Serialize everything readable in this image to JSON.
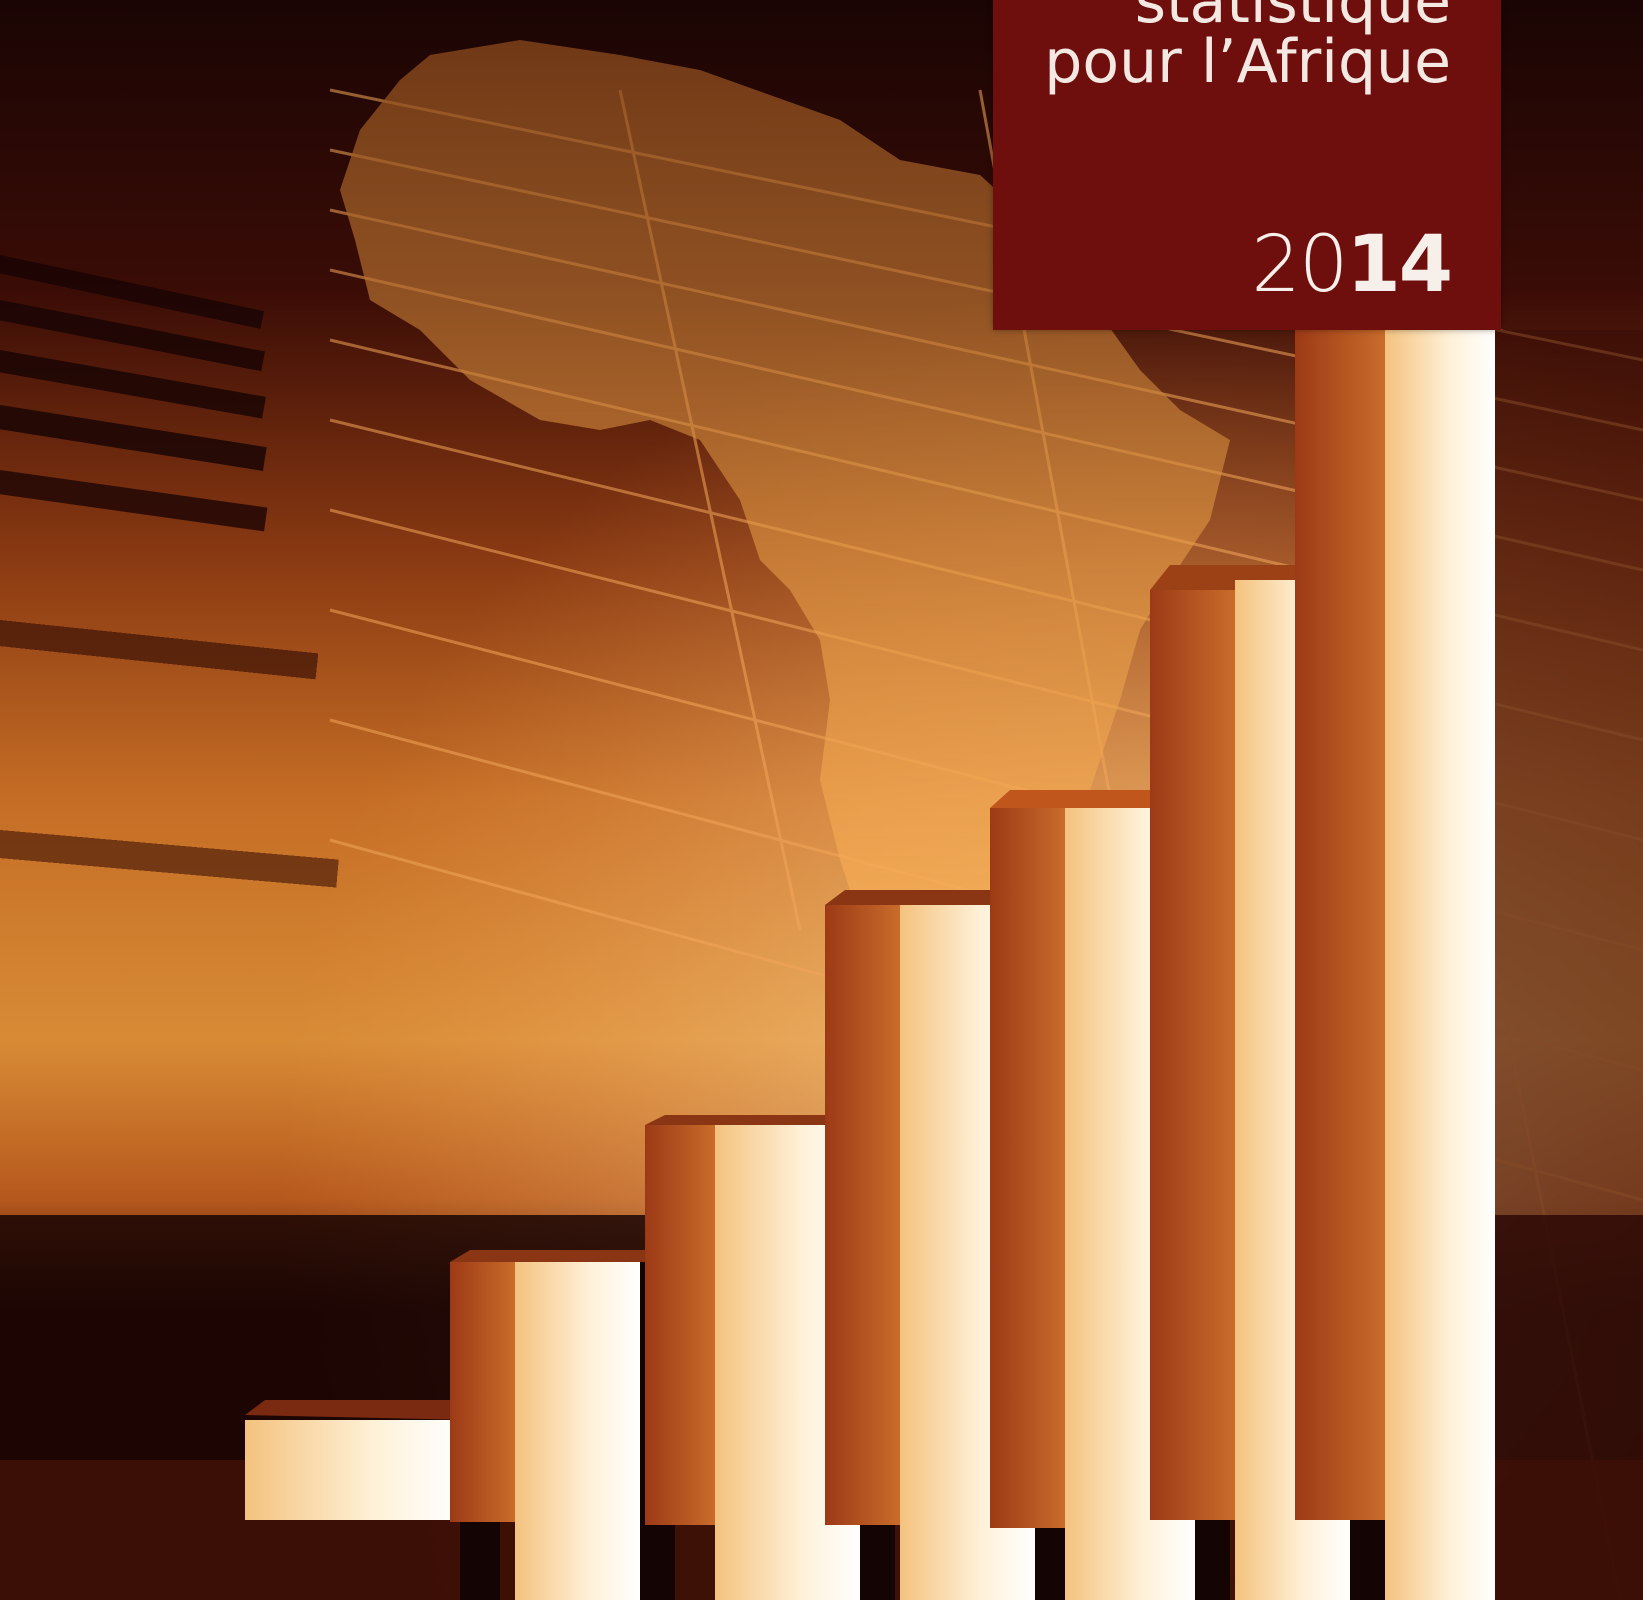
{
  "cover": {
    "title_line1": "statistique",
    "title_line2": "pour l’Afrique",
    "year_prefix": "20",
    "year_suffix": "14"
  },
  "colors": {
    "title_box": "#6e0f0e",
    "title_text": "#f3e8e2",
    "background_dark": "#120404",
    "amber": "#d9832b",
    "highlight": "#fff6e6"
  },
  "icons": [
    "africa-map-silhouette",
    "bar-chart-3d"
  ]
}
